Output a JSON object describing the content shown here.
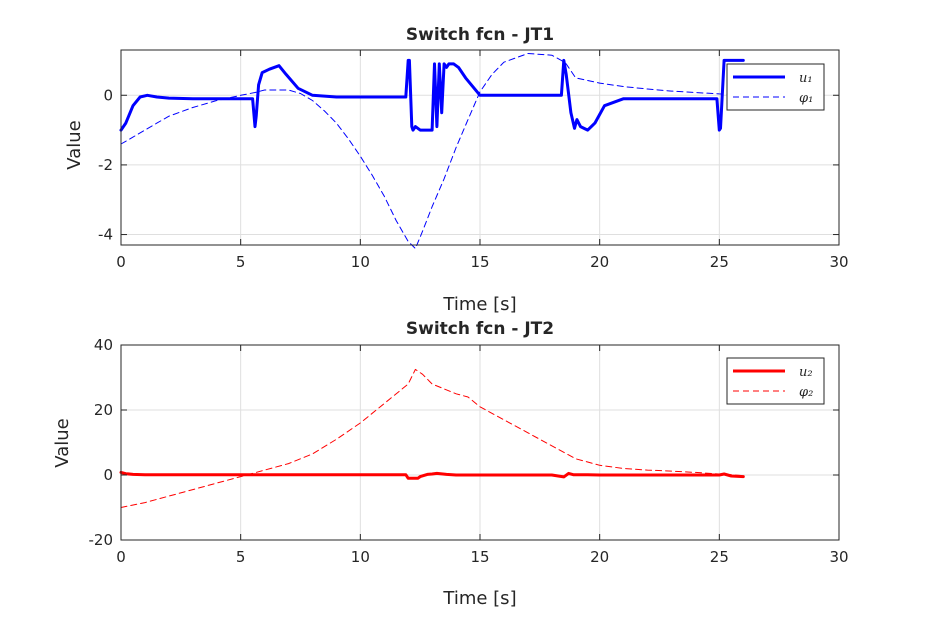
{
  "chart_data": [
    {
      "type": "line",
      "title": "Switch fcn - JT1",
      "xlabel": "Time [s]",
      "ylabel": "Value",
      "xlim": [
        0,
        30
      ],
      "ylim": [
        -4.3,
        1.3
      ],
      "xticks": [
        0,
        5,
        10,
        15,
        20,
        25,
        30
      ],
      "yticks": [
        -4,
        -2,
        0
      ],
      "xtick_labels": [
        "0",
        "5",
        "10",
        "15",
        "20",
        "25",
        "30"
      ],
      "ytick_labels": [
        "-4",
        "-2",
        "0"
      ],
      "grid": true,
      "legend_position": "top-right",
      "legend": [
        {
          "text": "u₁",
          "color": "#0000ff",
          "style": "solid"
        },
        {
          "text": "φ₁",
          "color": "#0000ff",
          "style": "dashed"
        }
      ],
      "series": [
        {
          "name": "u1",
          "color": "#0000ff",
          "style": "solid",
          "width": 3,
          "x": [
            0,
            0.2,
            0.5,
            0.8,
            1.1,
            1.5,
            2.0,
            3.0,
            4.0,
            5.5,
            5.6,
            5.65,
            5.75,
            5.9,
            6.2,
            6.6,
            6.9,
            7.4,
            8.0,
            9.0,
            10.0,
            11.0,
            11.9,
            12.0,
            12.05,
            12.15,
            12.2,
            12.3,
            12.5,
            12.8,
            13.0,
            13.1,
            13.2,
            13.3,
            13.4,
            13.5,
            13.6,
            13.7,
            13.9,
            14.1,
            14.4,
            15.0,
            15.5,
            16.0,
            17.0,
            18.0,
            18.4,
            18.5,
            18.6,
            18.8,
            18.95,
            19.05,
            19.2,
            19.5,
            19.8,
            20.2,
            21.0,
            22.0,
            23.0,
            24.0,
            24.9,
            25.0,
            25.05,
            25.2,
            25.3,
            25.5,
            26.0
          ],
          "y": [
            -1.0,
            -0.8,
            -0.3,
            -0.05,
            0,
            -0.05,
            -0.08,
            -0.1,
            -0.1,
            -0.1,
            -0.9,
            -0.6,
            0.3,
            0.65,
            0.75,
            0.85,
            0.6,
            0.2,
            0.0,
            -0.05,
            -0.05,
            -0.05,
            -0.05,
            1.0,
            1.0,
            -0.9,
            -1.0,
            -0.9,
            -1.0,
            -1.0,
            -1.0,
            0.9,
            -0.9,
            0.9,
            -0.5,
            0.9,
            0.8,
            0.9,
            0.9,
            0.8,
            0.5,
            0.0,
            0.0,
            0.0,
            0.0,
            0.0,
            0.0,
            1.0,
            0.6,
            -0.5,
            -0.95,
            -0.7,
            -0.9,
            -1.0,
            -0.8,
            -0.3,
            -0.1,
            -0.1,
            -0.1,
            -0.1,
            -0.1,
            -1.0,
            -0.95,
            1.0,
            1.0,
            1.0,
            1.0
          ]
        },
        {
          "name": "phi1",
          "color": "#0000ff",
          "style": "dashed",
          "width": 1,
          "x": [
            0,
            0.5,
            1.0,
            1.5,
            2.0,
            3.0,
            4.0,
            5.0,
            5.6,
            6.0,
            7.0,
            7.5,
            8.0,
            8.5,
            9.0,
            9.5,
            10.0,
            10.5,
            11.0,
            11.5,
            12.0,
            12.3,
            12.6,
            13.0,
            13.5,
            14.0,
            14.5,
            15.0,
            15.5,
            16.0,
            17.0,
            18.0,
            18.4,
            18.6,
            19.0,
            20.0,
            21.0,
            22.0,
            23.0,
            24.0,
            25.0,
            25.5,
            26.0
          ],
          "y": [
            -1.4,
            -1.2,
            -1.0,
            -0.8,
            -0.6,
            -0.35,
            -0.15,
            0.0,
            0.08,
            0.15,
            0.15,
            0.05,
            -0.15,
            -0.45,
            -0.8,
            -1.25,
            -1.75,
            -2.3,
            -2.9,
            -3.6,
            -4.2,
            -4.4,
            -3.9,
            -3.2,
            -2.4,
            -1.5,
            -0.7,
            0.1,
            0.6,
            0.95,
            1.2,
            1.15,
            1.0,
            0.9,
            0.5,
            0.35,
            0.25,
            0.18,
            0.12,
            0.08,
            0.04,
            0.03,
            0.0
          ]
        }
      ]
    },
    {
      "type": "line",
      "title": "Switch fcn - JT2",
      "xlabel": "Time [s]",
      "ylabel": "Value",
      "xlim": [
        0,
        30
      ],
      "ylim": [
        -20,
        40
      ],
      "xticks": [
        0,
        5,
        10,
        15,
        20,
        25,
        30
      ],
      "yticks": [
        -20,
        0,
        20,
        40
      ],
      "xtick_labels": [
        "0",
        "5",
        "10",
        "15",
        "20",
        "25",
        "30"
      ],
      "ytick_labels": [
        "-20",
        "0",
        "20",
        "40"
      ],
      "grid": true,
      "legend_position": "top-right",
      "legend": [
        {
          "text": "u₂",
          "color": "#ff0000",
          "style": "solid"
        },
        {
          "text": "φ₂",
          "color": "#ff0000",
          "style": "dashed"
        }
      ],
      "series": [
        {
          "name": "u2",
          "color": "#ff0000",
          "style": "solid",
          "width": 3,
          "x": [
            0,
            0.2,
            0.5,
            1.0,
            5.0,
            10.0,
            11.9,
            12.0,
            12.4,
            12.5,
            12.8,
            13.0,
            13.2,
            13.6,
            14.0,
            15.0,
            18.0,
            18.5,
            18.7,
            18.9,
            19.5,
            20.0,
            25.0,
            25.2,
            25.5,
            26.0
          ],
          "y": [
            0.8,
            0.4,
            0.2,
            0.1,
            0.1,
            0.1,
            0.1,
            -1.0,
            -1.0,
            -0.5,
            0.2,
            0.3,
            0.5,
            0.2,
            0.0,
            0.0,
            0.0,
            -0.6,
            0.5,
            0.1,
            0.1,
            0.0,
            0.0,
            0.3,
            -0.3,
            -0.5
          ]
        },
        {
          "name": "phi2",
          "color": "#ff0000",
          "style": "dashed",
          "width": 1,
          "x": [
            0,
            1.0,
            2.0,
            3.0,
            4.0,
            5.0,
            6.0,
            7.0,
            8.0,
            9.0,
            10.0,
            11.0,
            12.0,
            12.3,
            12.6,
            13.0,
            13.5,
            14.0,
            14.5,
            15.0,
            16.0,
            17.0,
            18.0,
            19.0,
            19.5,
            20.0,
            21.0,
            22.0,
            23.0,
            24.0,
            25.0,
            26.0
          ],
          "y": [
            -10,
            -8.5,
            -6.5,
            -4.5,
            -2.5,
            -0.5,
            1.5,
            3.5,
            6.5,
            11,
            16,
            22,
            28,
            32.5,
            31,
            28,
            26.5,
            25,
            24,
            21,
            17,
            13,
            9,
            5,
            4,
            3,
            2,
            1.5,
            1.2,
            0.8,
            0.3,
            -0.2
          ]
        }
      ]
    }
  ]
}
